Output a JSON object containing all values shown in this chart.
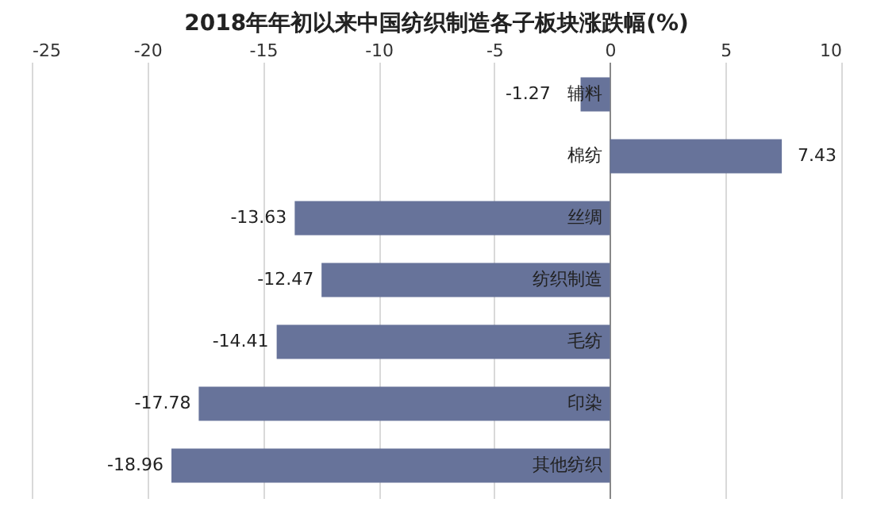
{
  "chart_data": {
    "type": "bar",
    "orientation": "horizontal",
    "title": "2018年年初以来中国纺织制造各子板块涨跌幅(%)",
    "categories": [
      "辅料",
      "棉纺",
      "丝绸",
      "纺织制造",
      "毛纺",
      "印染",
      "其他纺织"
    ],
    "values": [
      -1.27,
      7.43,
      -13.63,
      -12.47,
      -14.41,
      -17.78,
      -18.96
    ],
    "color": "#67739a",
    "xlim": [
      -25,
      10
    ],
    "xticks": [
      -25,
      -20,
      -15,
      -10,
      -5,
      0,
      5,
      10
    ],
    "grid": "x",
    "data_labels": true
  }
}
